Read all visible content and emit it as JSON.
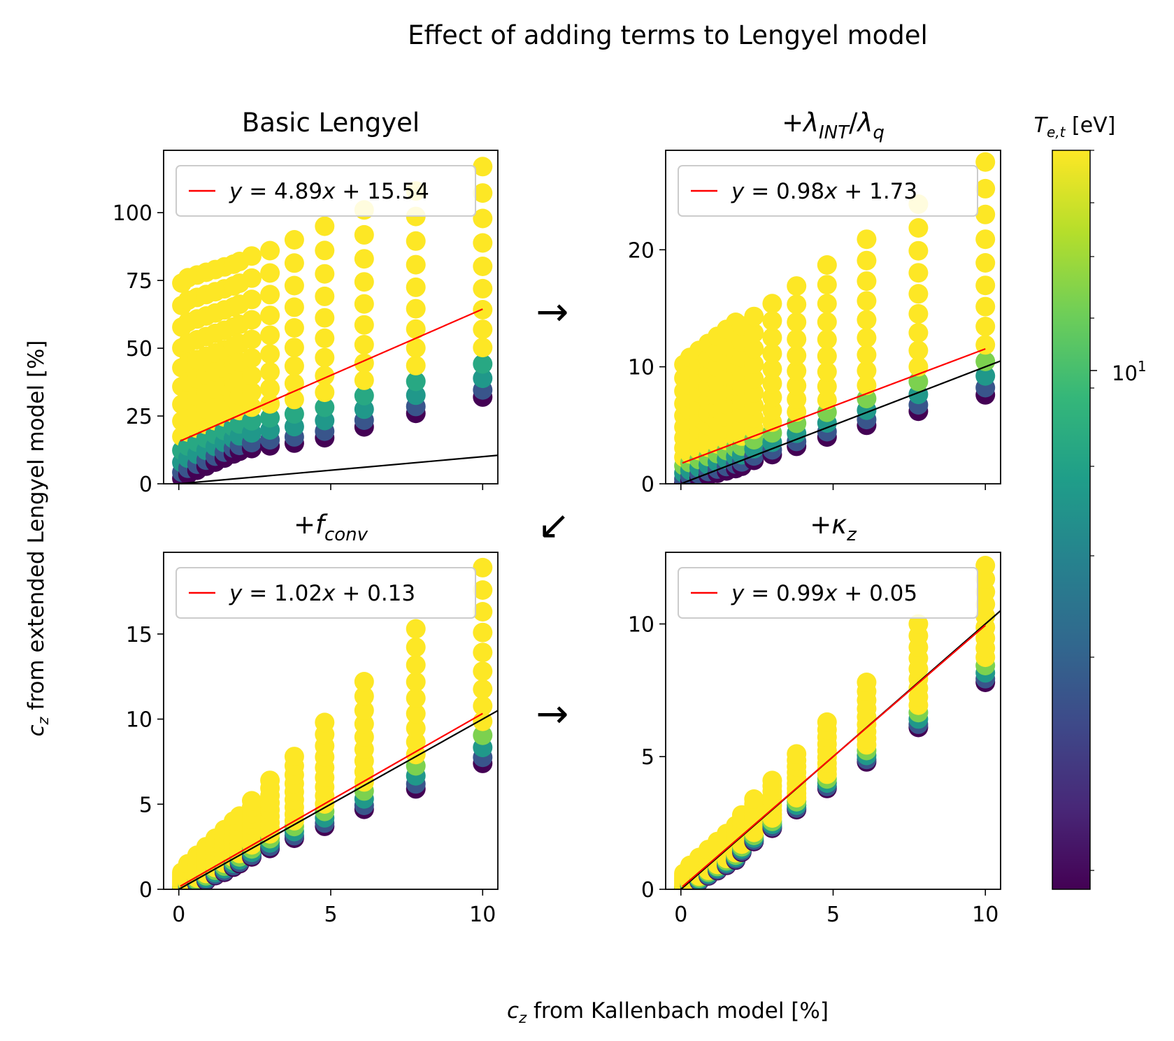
{
  "figure": {
    "title": "Effect of adding terms to Lengyel model",
    "ylabel_sym": "c",
    "ylabel_sub": "z",
    "ylabel_rest": " from extended Lengyel model [%]",
    "xlabel_sym": "c",
    "xlabel_sub": "z",
    "xlabel_rest": " from Kallenbach model [%]",
    "arrows": [
      "→",
      "→",
      "↙"
    ]
  },
  "colorbar": {
    "label_sym": "T",
    "label_sub": "e,t",
    "label_rest": " [eV]",
    "tick_base": "10",
    "tick_exp": "1",
    "colormap": "viridis",
    "colors": [
      "#440154",
      "#482878",
      "#3e4989",
      "#31688e",
      "#26828e",
      "#1f9e89",
      "#35b779",
      "#6ece58",
      "#b5de2b",
      "#fde725"
    ]
  },
  "chart_data": [
    {
      "type": "scatter",
      "title": "Basic Lengyel",
      "title_parts": [
        {
          "t": "Basic Lengyel"
        }
      ],
      "x_levels": [
        0.1,
        0.3,
        0.6,
        0.9,
        1.2,
        1.5,
        1.8,
        2.0,
        2.4,
        3.0,
        3.8,
        4.8,
        6.1,
        7.8,
        10.0
      ],
      "y_min_points": [
        2.0,
        3.5,
        5.0,
        6.5,
        8.0,
        9.5,
        11.0,
        12.0,
        13.0,
        14.0,
        15.0,
        17.0,
        21.0,
        26.0,
        32.0
      ],
      "y_max_points": [
        74.0,
        76.0,
        77.0,
        78.0,
        79.0,
        80.0,
        81.0,
        82.0,
        84.0,
        86.0,
        90.0,
        95.0,
        101.0,
        108.0,
        117.0
      ],
      "color_bands": [
        {
          "level": 0.55,
          "from": 0.2,
          "to": 0.3
        }
      ],
      "fit": {
        "slope": 4.89,
        "intercept": 15.54,
        "color": "#ff0000"
      },
      "fit_label": {
        "pre": "y = ",
        "slope": "4.89",
        "mid": "x + ",
        "intercept": "15.54"
      },
      "identity_line": true,
      "xlim": [
        -0.5,
        10.5
      ],
      "ylim": [
        0,
        123
      ],
      "xticks": [
        0,
        5,
        10
      ],
      "yticks": [
        0,
        25,
        50,
        75,
        100
      ],
      "show_xtick_labels": false
    },
    {
      "type": "scatter",
      "title": "+λINT/λq",
      "title_parts": [
        {
          "t": "+"
        },
        {
          "t": "λ"
        },
        {
          "t": "INT",
          "sub": true
        },
        {
          "t": "/"
        },
        {
          "t": "λ"
        },
        {
          "t": "q",
          "sub": true
        }
      ],
      "x_levels": [
        0.1,
        0.3,
        0.6,
        0.9,
        1.2,
        1.5,
        1.8,
        2.0,
        2.4,
        3.0,
        3.8,
        4.8,
        6.1,
        7.8,
        10.0
      ],
      "y_min_points": [
        0.1,
        0.3,
        0.5,
        0.7,
        0.9,
        1.1,
        1.3,
        1.5,
        2.0,
        2.5,
        3.2,
        4.0,
        5.0,
        6.2,
        7.6
      ],
      "y_max_points": [
        10.2,
        10.8,
        11.4,
        12.0,
        12.6,
        13.2,
        13.8,
        13.5,
        14.3,
        15.4,
        16.9,
        18.7,
        20.9,
        23.9,
        27.5
      ],
      "color_bands": [],
      "fit": {
        "slope": 0.98,
        "intercept": 1.73,
        "color": "#ff0000"
      },
      "fit_label": {
        "pre": "y = ",
        "slope": "0.98",
        "mid": "x + ",
        "intercept": "1.73"
      },
      "identity_line": true,
      "xlim": [
        -0.5,
        10.5
      ],
      "ylim": [
        0,
        28.5
      ],
      "xticks": [
        0,
        5,
        10
      ],
      "yticks": [
        0,
        10,
        20
      ],
      "show_xtick_labels": false
    },
    {
      "type": "scatter",
      "title": "+fconv",
      "title_parts": [
        {
          "t": "+"
        },
        {
          "t": "f"
        },
        {
          "t": "conv",
          "sub": true
        }
      ],
      "x_levels": [
        0.1,
        0.3,
        0.6,
        0.9,
        1.2,
        1.5,
        1.8,
        2.0,
        2.4,
        3.0,
        3.8,
        4.8,
        6.1,
        7.8,
        10.0
      ],
      "y_min_points": [
        0.0,
        0.1,
        0.3,
        0.5,
        0.8,
        1.0,
        1.3,
        1.5,
        1.9,
        2.4,
        3.0,
        3.7,
        4.7,
        5.9,
        7.4
      ],
      "y_max_points": [
        1.0,
        1.5,
        2.0,
        2.5,
        3.0,
        3.5,
        4.0,
        4.3,
        5.2,
        6.4,
        7.8,
        9.8,
        12.2,
        15.3,
        18.9
      ],
      "color_bands": [],
      "fit": {
        "slope": 1.02,
        "intercept": 0.13,
        "color": "#ff0000"
      },
      "fit_label": {
        "pre": "y = ",
        "slope": "1.02",
        "mid": "x + ",
        "intercept": "0.13"
      },
      "identity_line": true,
      "xlim": [
        -0.5,
        10.5
      ],
      "ylim": [
        0,
        19.8
      ],
      "xticks": [
        0,
        5,
        10
      ],
      "yticks": [
        0,
        5,
        10,
        15
      ],
      "show_xtick_labels": true
    },
    {
      "type": "scatter",
      "title": "+κz",
      "title_parts": [
        {
          "t": "+"
        },
        {
          "t": "κ"
        },
        {
          "t": "z",
          "sub": true
        }
      ],
      "x_levels": [
        0.1,
        0.3,
        0.6,
        0.9,
        1.2,
        1.5,
        1.8,
        2.0,
        2.4,
        3.0,
        3.8,
        4.8,
        6.1,
        7.8,
        10.0
      ],
      "y_min_points": [
        0.0,
        0.1,
        0.3,
        0.5,
        0.7,
        0.9,
        1.1,
        1.4,
        1.8,
        2.3,
        3.0,
        3.8,
        4.8,
        6.1,
        7.8
      ],
      "y_max_points": [
        0.6,
        0.9,
        1.2,
        1.5,
        1.8,
        2.1,
        2.4,
        2.8,
        3.4,
        4.1,
        5.1,
        6.3,
        7.8,
        10.0,
        12.2
      ],
      "color_bands": [],
      "fit": {
        "slope": 0.99,
        "intercept": 0.05,
        "color": "#ff0000"
      },
      "fit_label": {
        "pre": "y = ",
        "slope": "0.99",
        "mid": "x + ",
        "intercept": "0.05"
      },
      "identity_line": true,
      "xlim": [
        -0.5,
        10.5
      ],
      "ylim": [
        0,
        12.7
      ],
      "xticks": [
        0,
        5,
        10
      ],
      "yticks": [
        0,
        5,
        10
      ],
      "show_xtick_labels": true
    }
  ]
}
